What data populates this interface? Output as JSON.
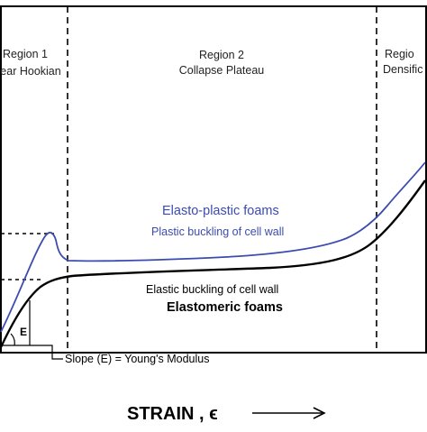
{
  "regions": [
    {
      "title": "Region 1",
      "subtitle": "ear Hookian"
    },
    {
      "title": "Region 2",
      "subtitle": "Collapse Plateau"
    },
    {
      "title": "Regio",
      "subtitle": "Densific"
    }
  ],
  "curves": {
    "elasto_plastic": {
      "label": "Elasto-plastic foams",
      "mechanism": "Plastic buckling of cell wall",
      "color": "#3b4bb0"
    },
    "elastomeric": {
      "label": "Elastomeric foams",
      "mechanism": "Elastic buckling of cell wall",
      "color": "#000000"
    }
  },
  "annotations": {
    "modulus_symbol": "E",
    "slope_label": "Slope (E) = Young's Modulus"
  },
  "axis": {
    "x_label": "STRAIN , ϵ",
    "arrow": "⟶"
  }
}
